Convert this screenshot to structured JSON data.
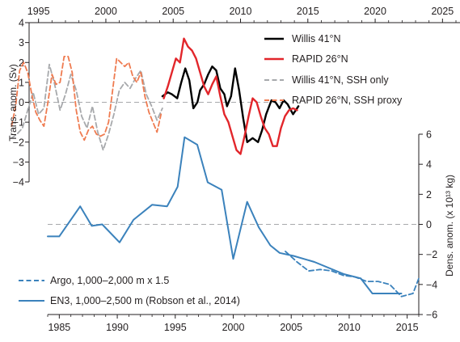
{
  "colors": {
    "willis": "#000000",
    "rapid": "#e2262b",
    "willis_ssh": "#a7a9ac",
    "rapid_ssh": "#ef7b50",
    "density": "#3b82bc",
    "axis": "#231f20",
    "zero_line": "#a7a9ac"
  },
  "chart_data": [
    {
      "type": "line",
      "panel": "transport",
      "ylabel": "Trans. anom. (Sv)",
      "xlabel": "",
      "x_axis": "top",
      "xlim": [
        1994.3,
        2026.3
      ],
      "ylim": [
        -4,
        4
      ],
      "x_ticks": [
        "1995",
        "2000",
        "2005",
        "2010",
        "2015",
        "2020",
        "2025"
      ],
      "y_ticks": [
        "4",
        "3",
        "2",
        "1",
        "0",
        "−1",
        "−2",
        "−3",
        "−4"
      ],
      "zero_reference_line": true,
      "legend_position": "top-right",
      "series": [
        {
          "name": "Willis 41°N",
          "style": "solid",
          "color_key": "willis",
          "x": [
            2004.2,
            2004.6,
            2004.9,
            2005.3,
            2005.6,
            2005.9,
            2006.2,
            2006.5,
            2006.8,
            2007.0,
            2007.3,
            2007.6,
            2007.9,
            2008.2,
            2008.5,
            2008.8,
            2009.0,
            2009.3,
            2009.6,
            2009.9,
            2010.2,
            2010.5,
            2010.9,
            2011.3,
            2011.6,
            2011.9,
            2012.3,
            2012.6,
            2012.9,
            2013.2,
            2013.5,
            2013.9,
            2014.3
          ],
          "y": [
            0.3,
            0.5,
            0.4,
            0.2,
            1.0,
            1.7,
            1.1,
            -0.3,
            0.0,
            0.6,
            0.9,
            1.4,
            1.8,
            1.6,
            0.7,
            0.4,
            -0.2,
            0.3,
            1.7,
            0.6,
            -0.8,
            -2.0,
            -1.8,
            -2.0,
            -1.4,
            -0.6,
            0.1,
            0.0,
            -0.3,
            0.1,
            -0.1,
            -0.6,
            -0.2
          ]
        },
        {
          "name": "RAPID 26°N",
          "style": "solid",
          "color_key": "rapid",
          "x": [
            2004.3,
            2004.6,
            2004.9,
            2005.2,
            2005.5,
            2005.8,
            2006.1,
            2006.4,
            2006.7,
            2007.0,
            2007.3,
            2007.6,
            2007.9,
            2008.2,
            2008.5,
            2008.8,
            2009.1,
            2009.4,
            2009.7,
            2010.0,
            2010.3,
            2010.6,
            2010.9,
            2011.2,
            2011.5,
            2011.8,
            2012.1,
            2012.4,
            2012.7,
            2013.0,
            2013.3,
            2013.6,
            2013.9,
            2014.2
          ],
          "y": [
            0.2,
            0.8,
            1.5,
            2.2,
            2.0,
            3.2,
            2.8,
            2.6,
            2.2,
            1.5,
            0.8,
            0.4,
            0.9,
            1.3,
            0.3,
            -0.6,
            -1.0,
            -1.7,
            -2.4,
            -2.6,
            -1.7,
            -0.7,
            0.2,
            0.0,
            -0.7,
            -1.3,
            -1.6,
            -2.2,
            -2.2,
            -1.3,
            -0.7,
            -0.4,
            -0.3,
            -0.4
          ]
        },
        {
          "name": "Willis 41°N, SSH only",
          "style": "dashed",
          "color_key": "willis_ssh",
          "x": [
            1993.0,
            1993.4,
            1993.8,
            1994.2,
            1994.6,
            1995.0,
            1995.4,
            1995.8,
            1996.2,
            1996.6,
            1997.0,
            1997.4,
            1997.8,
            1998.2,
            1998.6,
            1999.0,
            1999.4,
            1999.8,
            2000.2,
            2000.6,
            2001.0,
            2001.4,
            2001.8,
            2002.2,
            2002.6,
            2003.0,
            2003.4,
            2003.8,
            2004.2
          ],
          "y": [
            -1.8,
            -1.6,
            -1.3,
            -0.4,
            0.5,
            -0.6,
            -0.3,
            1.9,
            0.9,
            -0.4,
            0.4,
            1.4,
            0.6,
            -0.7,
            -1.3,
            -0.2,
            -1.5,
            -2.4,
            -1.6,
            -0.6,
            0.6,
            1.0,
            0.7,
            1.2,
            1.6,
            0.4,
            -0.2,
            -0.9,
            -0.3
          ]
        },
        {
          "name": "RAPID 26°N, SSH proxy",
          "style": "dashed",
          "color_key": "rapid_ssh",
          "x": [
            1993.0,
            1993.3,
            1993.6,
            1993.9,
            1994.2,
            1994.5,
            1994.8,
            1995.1,
            1995.4,
            1995.7,
            1996.0,
            1996.3,
            1996.6,
            1996.9,
            1997.2,
            1997.5,
            1997.8,
            1998.1,
            1998.4,
            1998.7,
            1999.0,
            1999.3,
            1999.6,
            1999.9,
            2000.2,
            2000.5,
            2000.8,
            2001.1,
            2001.4,
            2001.7,
            2002.0,
            2002.3,
            2002.6,
            2002.9,
            2003.2,
            2003.5,
            2003.8,
            2004.1
          ],
          "y": [
            -1.2,
            -0.2,
            1.6,
            2.0,
            1.5,
            0.4,
            -0.5,
            -0.9,
            -1.2,
            0.0,
            1.4,
            0.9,
            1.0,
            2.3,
            2.3,
            1.5,
            -0.4,
            -1.5,
            -1.9,
            -1.4,
            -1.2,
            -1.6,
            -1.7,
            -1.6,
            -1.0,
            0.6,
            2.2,
            2.0,
            1.8,
            2.0,
            1.3,
            1.0,
            1.5,
            0.3,
            -0.5,
            -1.0,
            -1.5,
            -0.6
          ]
        }
      ]
    },
    {
      "type": "line",
      "panel": "density",
      "ylabel": "Dens. anom. (x 10¹³ kg)",
      "xlabel": "",
      "x_axis": "bottom",
      "xlim": [
        1984,
        2016
      ],
      "ylim": [
        -6,
        6
      ],
      "x_ticks": [
        "1985",
        "1990",
        "1995",
        "2000",
        "2005",
        "2010",
        "2015"
      ],
      "y_ticks": [
        "6",
        "4",
        "2",
        "0",
        "−2",
        "−4",
        "−6"
      ],
      "zero_reference_line": true,
      "legend_position": "bottom-left",
      "series": [
        {
          "name": "Argo, 1,000–2,000 m x 1.5",
          "style": "dashed",
          "color_key": "density",
          "x": [
            2004.5,
            2005.5,
            2006.5,
            2007.5,
            2008.5,
            2009.5,
            2010.5,
            2011.5,
            2012.5,
            2013.5,
            2014.5,
            2015.5,
            2016.0
          ],
          "y": [
            -1.8,
            -2.5,
            -3.1,
            -3.0,
            -3.1,
            -3.4,
            -3.5,
            -3.8,
            -3.8,
            -4.0,
            -4.8,
            -4.6,
            -3.6
          ]
        },
        {
          "name": "EN3, 1,000–2,500 m (Robson et al., 2014)",
          "style": "solid",
          "color_key": "density",
          "x": [
            1984.0,
            1985.0,
            1986.8,
            1987.8,
            1988.7,
            1990.2,
            1991.4,
            1993.0,
            1994.3,
            1995.2,
            1995.8,
            1996.9,
            1997.8,
            1999.0,
            2000.0,
            2001.2,
            2002.2,
            2003.2,
            2004.0,
            2005.2,
            2007.0,
            2009.5,
            2011.0,
            2012.0,
            2013.5,
            2014.5
          ],
          "y": [
            -0.8,
            -0.8,
            1.2,
            -0.1,
            0.0,
            -1.2,
            0.3,
            1.3,
            1.2,
            2.5,
            5.8,
            5.3,
            2.8,
            2.3,
            -2.3,
            1.5,
            -0.2,
            -1.4,
            -1.9,
            -2.1,
            -2.5,
            -3.3,
            -3.6,
            -4.6,
            -4.6,
            -4.6
          ]
        }
      ]
    }
  ]
}
